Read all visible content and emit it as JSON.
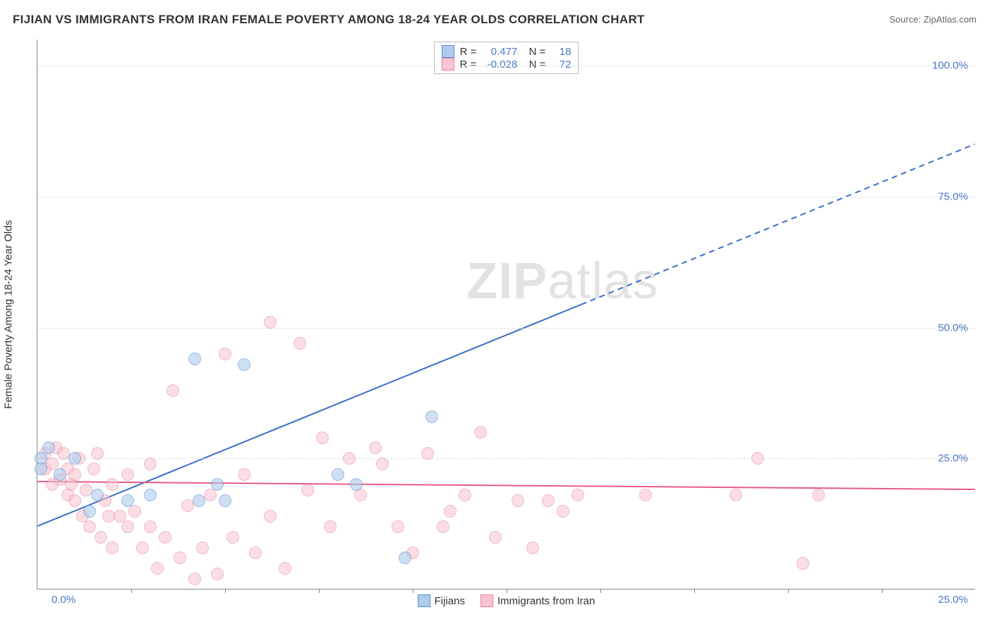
{
  "title": "FIJIAN VS IMMIGRANTS FROM IRAN FEMALE POVERTY AMONG 18-24 YEAR OLDS CORRELATION CHART",
  "source": "Source: ZipAtlas.com",
  "yaxis_label": "Female Poverty Among 18-24 Year Olds",
  "watermark_a": "ZIP",
  "watermark_b": "atlas",
  "chart": {
    "type": "scatter",
    "xlim": [
      0,
      25
    ],
    "ylim": [
      0,
      105
    ],
    "xticks": [
      2.5,
      5,
      7.5,
      10,
      12.5,
      15,
      17.5,
      20,
      22.5
    ],
    "yticks": [
      25,
      50,
      75,
      100
    ],
    "ytick_labels": [
      "25.0%",
      "50.0%",
      "75.0%",
      "100.0%"
    ],
    "x_origin_label": "0.0%",
    "x_max_label": "25.0%",
    "background_color": "#ffffff",
    "grid_color": "#dddddd",
    "marker_radius": 9,
    "series": [
      {
        "name": "Fijians",
        "fill": "#aecbea",
        "stroke": "#5b8fd6",
        "fill_opacity": 0.6,
        "R": "0.477",
        "N": "18",
        "trend": {
          "x1": 0,
          "y1": 12,
          "x2": 25,
          "y2": 85,
          "solid_until_x": 14.5,
          "color": "#3a6fc9",
          "width": 2
        },
        "points": [
          [
            0.1,
            25
          ],
          [
            0.1,
            23
          ],
          [
            0.3,
            27
          ],
          [
            0.6,
            22
          ],
          [
            1.0,
            25
          ],
          [
            1.4,
            15
          ],
          [
            1.6,
            18
          ],
          [
            2.4,
            17
          ],
          [
            3.0,
            18
          ],
          [
            4.2,
            44
          ],
          [
            4.8,
            20
          ],
          [
            5.0,
            17
          ],
          [
            5.5,
            43
          ],
          [
            8.0,
            22
          ],
          [
            8.5,
            20
          ],
          [
            9.8,
            6
          ],
          [
            10.5,
            33
          ],
          [
            4.3,
            17
          ]
        ]
      },
      {
        "name": "Immigrants from Iran",
        "fill": "#f6c4cf",
        "stroke": "#e87fa0",
        "fill_opacity": 0.55,
        "R": "-0.028",
        "N": "72",
        "trend": {
          "x1": 0,
          "y1": 20.5,
          "x2": 25,
          "y2": 19,
          "solid_until_x": 25,
          "color": "#e75a8a",
          "width": 2
        },
        "points": [
          [
            0.2,
            23
          ],
          [
            0.2,
            26
          ],
          [
            0.4,
            24
          ],
          [
            0.4,
            20
          ],
          [
            0.5,
            27
          ],
          [
            0.6,
            21
          ],
          [
            0.7,
            26
          ],
          [
            0.8,
            23
          ],
          [
            0.8,
            18
          ],
          [
            0.9,
            20
          ],
          [
            1.0,
            22
          ],
          [
            1.0,
            17
          ],
          [
            1.1,
            25
          ],
          [
            1.2,
            14
          ],
          [
            1.3,
            19
          ],
          [
            1.4,
            12
          ],
          [
            1.5,
            23
          ],
          [
            1.6,
            26
          ],
          [
            1.7,
            10
          ],
          [
            1.8,
            17
          ],
          [
            1.9,
            14
          ],
          [
            2.0,
            20
          ],
          [
            2.0,
            8
          ],
          [
            2.2,
            14
          ],
          [
            2.4,
            12
          ],
          [
            2.4,
            22
          ],
          [
            2.6,
            15
          ],
          [
            2.8,
            8
          ],
          [
            3.0,
            12
          ],
          [
            3.0,
            24
          ],
          [
            3.2,
            4
          ],
          [
            3.4,
            10
          ],
          [
            3.6,
            38
          ],
          [
            3.8,
            6
          ],
          [
            4.0,
            16
          ],
          [
            4.2,
            2
          ],
          [
            4.4,
            8
          ],
          [
            4.6,
            18
          ],
          [
            4.8,
            3
          ],
          [
            5.0,
            45
          ],
          [
            5.2,
            10
          ],
          [
            5.5,
            22
          ],
          [
            5.8,
            7
          ],
          [
            6.2,
            14
          ],
          [
            6.2,
            51
          ],
          [
            6.6,
            4
          ],
          [
            7.0,
            47
          ],
          [
            7.2,
            19
          ],
          [
            7.6,
            29
          ],
          [
            7.8,
            12
          ],
          [
            8.3,
            25
          ],
          [
            8.6,
            18
          ],
          [
            9.0,
            27
          ],
          [
            9.2,
            24
          ],
          [
            9.6,
            12
          ],
          [
            10.0,
            7
          ],
          [
            10.4,
            26
          ],
          [
            10.8,
            12
          ],
          [
            11.0,
            15
          ],
          [
            11.4,
            18
          ],
          [
            11.8,
            30
          ],
          [
            12.2,
            10
          ],
          [
            12.8,
            17
          ],
          [
            13.2,
            8
          ],
          [
            13.6,
            17
          ],
          [
            14.4,
            18
          ],
          [
            16.2,
            18
          ],
          [
            18.6,
            18
          ],
          [
            19.2,
            25
          ],
          [
            20.4,
            5
          ],
          [
            20.8,
            18
          ],
          [
            14.0,
            15
          ]
        ]
      }
    ]
  },
  "legend": [
    {
      "label": "Fijians",
      "fill": "#aecbea",
      "stroke": "#5b8fd6"
    },
    {
      "label": "Immigrants from Iran",
      "fill": "#f6c4cf",
      "stroke": "#e87fa0"
    }
  ]
}
